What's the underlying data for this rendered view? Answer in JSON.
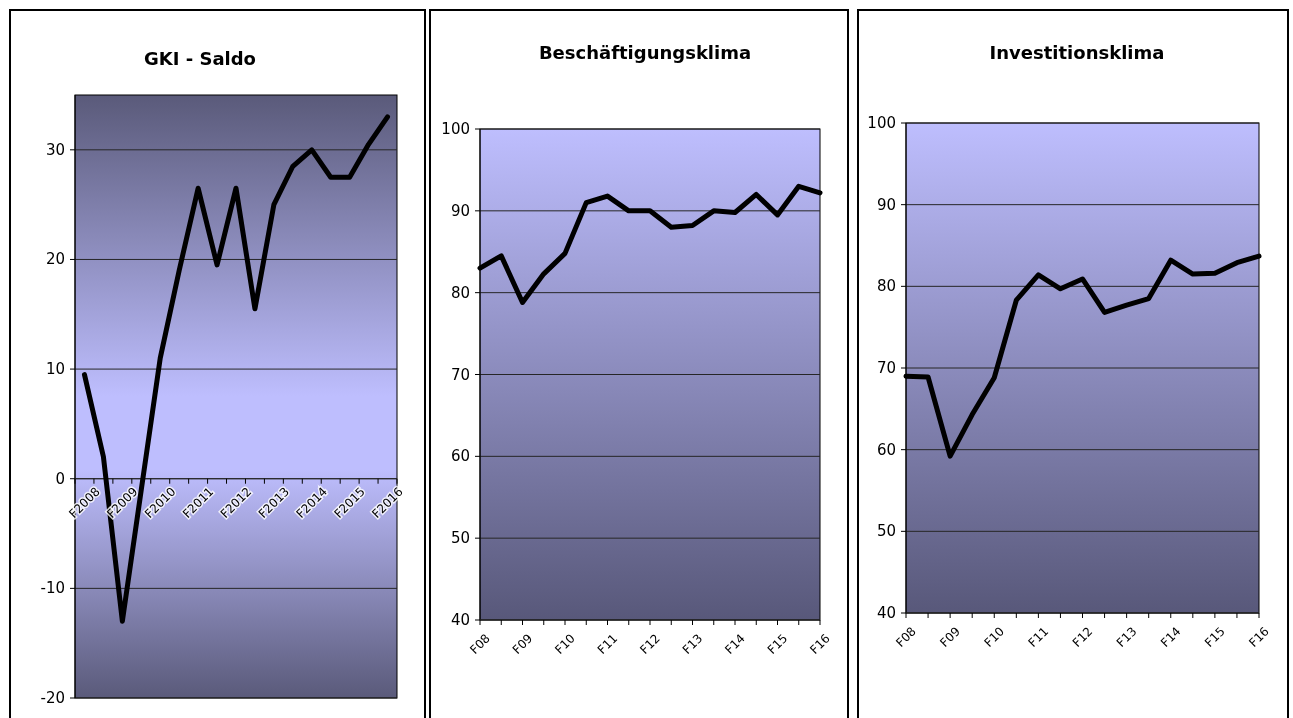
{
  "chart_data": [
    {
      "type": "line",
      "title": "GKI -  Saldo",
      "categories": [
        "F2008",
        null,
        "F2009",
        null,
        "F2010",
        null,
        "F2011",
        null,
        "F2012",
        null,
        "F2013",
        null,
        "F2014",
        null,
        "F2015",
        null,
        "F2016"
      ],
      "series": [
        {
          "color": "#000000",
          "values": [
            9.5,
            2,
            -13,
            -1,
            11,
            19,
            26.5,
            19.5,
            26.5,
            15.5,
            25,
            28.5,
            30,
            27.5,
            27.5,
            30.5,
            33
          ]
        }
      ],
      "ylim": [
        -20,
        35
      ],
      "yticks": [
        -20,
        -10,
        0,
        10,
        20,
        30
      ],
      "grid": "y"
    },
    {
      "type": "line",
      "title": "Beschäftigungsklima",
      "categories": [
        "F08",
        null,
        "F09",
        null,
        "F10",
        null,
        "F11",
        null,
        "F12",
        null,
        "F13",
        null,
        "F14",
        null,
        "F15",
        null,
        "F16"
      ],
      "series": [
        {
          "color": "#000000",
          "values": [
            83,
            84.5,
            78.8,
            82.3,
            84.8,
            91,
            91.8,
            90,
            90,
            88,
            88.2,
            90,
            89.8,
            92,
            89.5,
            93,
            92.2
          ]
        }
      ],
      "ylim": [
        40,
        100
      ],
      "yticks": [
        40,
        50,
        60,
        70,
        80,
        90,
        100
      ],
      "grid": "y"
    },
    {
      "type": "line",
      "title": "Investitionsklima",
      "categories": [
        "F08",
        null,
        "F09",
        null,
        "F10",
        null,
        "F11",
        null,
        "F12",
        null,
        "F13",
        null,
        "F14",
        null,
        "F15",
        null,
        "F16"
      ],
      "series": [
        {
          "color": "#000000",
          "values": [
            69,
            68.9,
            59.2,
            64.3,
            68.8,
            78.3,
            81.4,
            79.7,
            80.9,
            76.8,
            77.7,
            78.5,
            83.2,
            81.5,
            81.6,
            82.9,
            83.7
          ]
        }
      ],
      "ylim": [
        40,
        100
      ],
      "yticks": [
        40,
        50,
        60,
        70,
        80,
        90,
        100
      ],
      "grid": "y"
    }
  ]
}
